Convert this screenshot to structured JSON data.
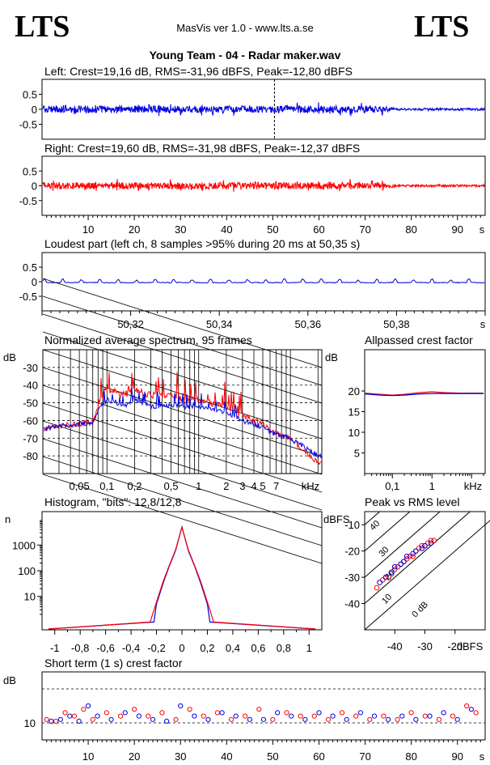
{
  "header": {
    "logo_left": "LTS",
    "logo_right": "LTS",
    "version": "MasVis ver 1.0 - www.lts.a.se",
    "track_title": "Young Team - 04 - Radar maker.wav"
  },
  "labels": {
    "left": "Left: Crest=19,16 dB, RMS=-31,96 dBFS, Peak=-12,80 dBFS",
    "right": "Right: Crest=19,60 dB, RMS=-31,98 dBFS, Peak=-12,37 dBFS",
    "loudest": "Loudest part (left  ch, 8 samples >95% during 20 ms at 50,35 s)",
    "spectrum": "Normalized average spectrum, 95 frames",
    "allpass": "Allpassed crest factor",
    "histogram": "Histogram, \"bits\": 12,8/12,8",
    "peakrms": "Peak vs RMS level",
    "shortcrest": "Short term (1 s) crest factor"
  },
  "colors": {
    "left": "#0000e0",
    "right": "#ff0000",
    "axis": "#000000"
  },
  "chart_data": [
    {
      "type": "line",
      "id": "left-waveform",
      "title": "Left: Crest=19,16 dB, RMS=-31,96 dBFS, Peak=-12,80 dBFS",
      "ylim": [
        -1,
        1
      ],
      "yticks": [
        "0.5",
        "0",
        "-0.5"
      ],
      "xlim": [
        0,
        96
      ],
      "marker_x": 50.35,
      "envelope": {
        "x": [
          1,
          73,
          77,
          95
        ],
        "amplitude": [
          0.12,
          0.12,
          0.04,
          0.04
        ],
        "burst_period_s": 2.3,
        "burst_amplitude": 0.2
      }
    },
    {
      "type": "line",
      "id": "right-waveform",
      "title": "Right: Crest=19,60 dB, RMS=-31,98 dBFS, Peak=-12,37 dBFS",
      "ylim": [
        -1,
        1
      ],
      "yticks": [
        "0.5",
        "0",
        "-0.5"
      ],
      "xlim": [
        0,
        96
      ],
      "xticks": [
        "10",
        "20",
        "30",
        "40",
        "50",
        "60",
        "70",
        "80",
        "90"
      ],
      "xunit": "s",
      "envelope": {
        "x": [
          1,
          73,
          77,
          95
        ],
        "amplitude": [
          0.12,
          0.12,
          0.04,
          0.04
        ],
        "burst_period_s": 2.3,
        "burst_amplitude": 0.2
      }
    },
    {
      "type": "line",
      "id": "loudest-part",
      "title": "Loudest part (left  ch, 8 samples >95% during 20 ms at 50,35 s)",
      "ylim": [
        -1,
        1
      ],
      "yticks": [
        "0.5",
        "0",
        "-0.5"
      ],
      "xlim": [
        50.3,
        50.4
      ],
      "xticks": [
        "50,32",
        "50,34",
        "50,36",
        "50,38"
      ],
      "xunit": "s",
      "wave": {
        "baseline": 0.0,
        "spike_amplitude": 0.12,
        "spikes": 24
      }
    },
    {
      "type": "line",
      "id": "avg-spectrum",
      "xscale": "log",
      "title": "Normalized average spectrum, 95 frames",
      "ylabel": "dB",
      "ylim": [
        -90,
        -20
      ],
      "yticks": [
        "-30",
        "-40",
        "-50",
        "-60",
        "-70",
        "-80"
      ],
      "xticks": [
        "0,05",
        "0,1",
        "0,2",
        "0,5",
        "1",
        "2",
        "3",
        "4",
        "5",
        "7"
      ],
      "xunit": "kHz",
      "series": [
        {
          "color": "red",
          "x": [
            0.02,
            0.03,
            0.05,
            0.07,
            0.08,
            0.1,
            0.15,
            0.2,
            0.3,
            0.5,
            0.7,
            1,
            2,
            3,
            5,
            7,
            10,
            15,
            20
          ],
          "y": [
            -65,
            -63,
            -62,
            -60,
            -52,
            -42,
            -45,
            -42,
            -45,
            -45,
            -48,
            -48,
            -52,
            -57,
            -62,
            -67,
            -70,
            -78,
            -84
          ]
        },
        {
          "color": "blue",
          "x": [
            0.02,
            0.03,
            0.05,
            0.07,
            0.08,
            0.1,
            0.15,
            0.2,
            0.3,
            0.5,
            0.7,
            1,
            2,
            3,
            5,
            7,
            10,
            15,
            20
          ],
          "y": [
            -65,
            -63,
            -62,
            -61,
            -54,
            -48,
            -52,
            -48,
            -52,
            -51,
            -52,
            -52,
            -55,
            -60,
            -64,
            -68,
            -70,
            -76,
            -80
          ]
        }
      ]
    },
    {
      "type": "line",
      "id": "allpassed-crest",
      "xscale": "log",
      "title": "Allpassed crest factor",
      "ylabel": "dB",
      "ylim": [
        0,
        30
      ],
      "yticks": [
        "20",
        "15",
        "10",
        "5"
      ],
      "xticks": [
        "0,1",
        "1"
      ],
      "xunit": "kHz",
      "series": [
        {
          "color": "red",
          "x": [
            0.02,
            0.05,
            0.1,
            0.2,
            0.5,
            1,
            2,
            5,
            20
          ],
          "y": [
            19.5,
            19.2,
            19.0,
            19.2,
            19.6,
            19.8,
            19.6,
            19.5,
            19.5
          ]
        },
        {
          "color": "blue",
          "x": [
            0.02,
            0.05,
            0.1,
            0.2,
            0.5,
            1,
            2,
            5,
            20
          ],
          "y": [
            19.3,
            19.0,
            18.9,
            19.0,
            19.3,
            19.4,
            19.4,
            19.4,
            19.4
          ]
        }
      ]
    },
    {
      "type": "line",
      "id": "histogram",
      "title": "Histogram, \"bits\": 12,8/12,8",
      "ylabel": "n",
      "yscale": "log",
      "yticks": [
        "1000",
        "100",
        "10"
      ],
      "xlim": [
        -1.1,
        1.1
      ],
      "xticks": [
        "-1",
        "-0,8",
        "-0,6",
        "-0,4",
        "-0,2",
        "0",
        "0,2",
        "0,4",
        "0,6",
        "0,8",
        "1"
      ],
      "series": [
        {
          "color": "blue",
          "x": [
            -0.22,
            -0.2,
            -0.15,
            -0.1,
            -0.05,
            0,
            0.05,
            0.1,
            0.15,
            0.2,
            0.22
          ],
          "y": [
            1,
            5,
            30,
            150,
            600,
            5000,
            600,
            150,
            30,
            5,
            1
          ]
        },
        {
          "color": "red",
          "x": [
            -0.25,
            -0.2,
            -0.15,
            -0.1,
            -0.05,
            0,
            0.05,
            0.1,
            0.15,
            0.2,
            0.25
          ],
          "y": [
            1,
            6,
            35,
            160,
            650,
            5000,
            650,
            160,
            35,
            6,
            1
          ]
        }
      ]
    },
    {
      "type": "scatter",
      "id": "peak-vs-rms",
      "title": "Peak vs RMS level",
      "ylabel": "dBFS",
      "xlabel": "dBFS",
      "xlim": [
        -50,
        -10
      ],
      "ylim": [
        -50,
        -5
      ],
      "xticks": [
        "-40",
        "-30",
        "-20"
      ],
      "yticks": [
        "-10",
        "-20",
        "-30",
        "-40"
      ],
      "diagonals": [
        "40",
        "30",
        "20",
        "10",
        "0 dB"
      ],
      "series": [
        {
          "color": "red",
          "x": [
            -46,
            -44,
            -42,
            -40,
            -39,
            -38,
            -37,
            -36,
            -35,
            -34,
            -33,
            -32,
            -31,
            -30,
            -29,
            -28,
            -27
          ],
          "y": [
            -34,
            -31,
            -30,
            -27,
            -26,
            -25,
            -24,
            -23,
            -22,
            -22,
            -20,
            -19,
            -18,
            -18,
            -17,
            -16,
            -16
          ]
        },
        {
          "color": "blue",
          "x": [
            -45,
            -43,
            -41,
            -40,
            -38,
            -37,
            -36,
            -34,
            -33,
            -31,
            -30,
            -28
          ],
          "y": [
            -32,
            -30,
            -28,
            -26,
            -25,
            -24,
            -22,
            -21,
            -20,
            -19,
            -18,
            -17
          ]
        }
      ]
    },
    {
      "type": "scatter",
      "id": "short-term-crest",
      "title": "Short term (1 s) crest factor",
      "ylabel": "dB",
      "ylim": [
        5,
        25
      ],
      "yticks": [
        "10"
      ],
      "xlim": [
        0,
        96
      ],
      "xticks": [
        "10",
        "20",
        "30",
        "40",
        "50",
        "60",
        "70",
        "80",
        "90"
      ],
      "xunit": "s",
      "series": [
        {
          "color": "red",
          "x": [
            1,
            3,
            5,
            7,
            9,
            11,
            14,
            17,
            20,
            23,
            26,
            29,
            32,
            35,
            38,
            41,
            44,
            47,
            50,
            53,
            56,
            59,
            62,
            65,
            68,
            71,
            74,
            77,
            80,
            83,
            86,
            89,
            92,
            94
          ],
          "y": [
            11,
            10.5,
            13,
            12,
            14,
            11,
            13,
            12,
            14,
            12,
            13,
            11,
            14,
            12,
            13,
            11,
            12,
            14,
            11,
            13,
            12,
            12,
            11,
            13,
            12,
            11,
            12,
            11,
            13,
            12,
            11,
            12,
            15,
            13
          ]
        },
        {
          "color": "blue",
          "x": [
            2,
            4,
            6,
            8,
            10,
            12,
            15,
            18,
            21,
            24,
            27,
            30,
            33,
            36,
            39,
            42,
            45,
            48,
            51,
            54,
            57,
            60,
            63,
            66,
            69,
            72,
            75,
            78,
            81,
            84,
            87,
            90,
            93
          ],
          "y": [
            10.5,
            11,
            12,
            10.5,
            15,
            12,
            11,
            13,
            12,
            11,
            10.5,
            15,
            12,
            11,
            13,
            12,
            11,
            11,
            13,
            12,
            11,
            13,
            12,
            11,
            13,
            12,
            11,
            12,
            11,
            12,
            13,
            11,
            14
          ]
        }
      ]
    }
  ]
}
